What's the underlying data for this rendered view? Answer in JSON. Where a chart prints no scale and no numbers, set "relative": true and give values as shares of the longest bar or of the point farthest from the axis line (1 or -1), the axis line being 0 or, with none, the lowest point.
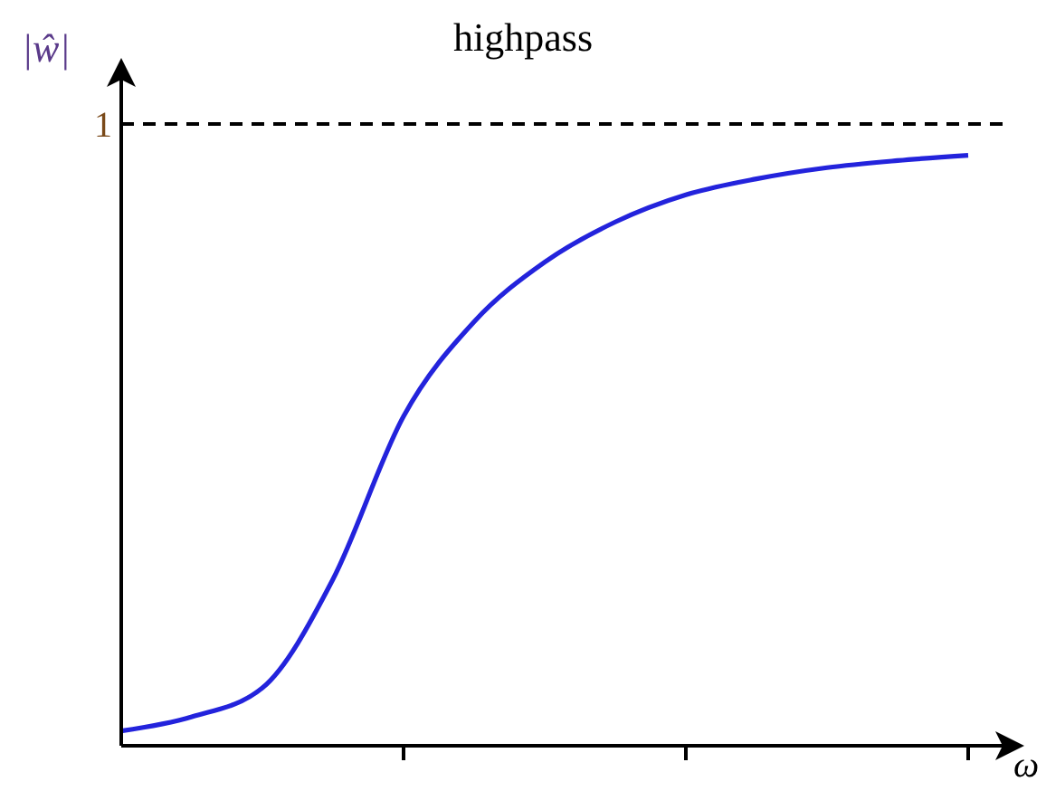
{
  "chart_data": {
    "type": "line",
    "title": "highpass",
    "xlabel": "ω",
    "ylabel": "|ŵ|",
    "relative": true,
    "categories": [
      null,
      null,
      null,
      null,
      null,
      null,
      null,
      null,
      null,
      null,
      null,
      null,
      null
    ],
    "series": [
      {
        "color": "#2323dc",
        "values": [
          0.025,
          0.049,
          0.098,
          0.282,
          0.558,
          0.718,
          0.819,
          0.887,
          0.933,
          0.96,
          0.979,
          0.991,
          1
        ]
      }
    ],
    "ref_lines": [
      {
        "axis": "y",
        "value": 1.053,
        "label": "1",
        "line_style": "dashed",
        "color": "#000000"
      }
    ],
    "grid": false,
    "legend": false,
    "marker": "none",
    "line_style": "solid"
  }
}
